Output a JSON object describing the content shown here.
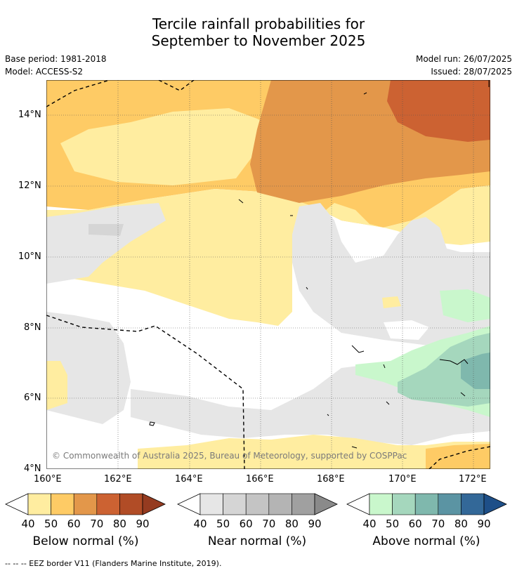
{
  "title_line1": "Tercile rainfall probabilities for",
  "title_line2": "September to November 2025",
  "base_period": "Base period: 1981-2018",
  "model": "Model: ACCESS-S2",
  "model_run": "Model run: 26/07/2025",
  "issued": "Issued: 28/07/2025",
  "copyright": "© Commonwealth of Australia 2025, Bureau of Meteorology, supported by COSPPac",
  "lat_labels": [
    "14°N",
    "12°N",
    "10°N",
    "8°N",
    "6°N",
    "4°N"
  ],
  "lon_labels": [
    "160°E",
    "162°E",
    "164°E",
    "166°E",
    "168°E",
    "170°E",
    "172°E"
  ],
  "colorbars": [
    {
      "label": "Below normal (%)",
      "ticks": [
        "40",
        "50",
        "60",
        "70",
        "80",
        "90"
      ],
      "colors": [
        "#ffeda0",
        "#fecb65",
        "#e3974a",
        "#cc6232",
        "#b14c26",
        "#953b20"
      ]
    },
    {
      "label": "Near normal (%)",
      "ticks": [
        "40",
        "50",
        "60",
        "70",
        "80",
        "90"
      ],
      "colors": [
        "#e6e6e6",
        "#d5d5d5",
        "#c4c4c4",
        "#b4b4b4",
        "#a0a0a0",
        "#8a8a8a"
      ]
    },
    {
      "label": "Above normal (%)",
      "ticks": [
        "40",
        "50",
        "60",
        "70",
        "80",
        "90"
      ],
      "colors": [
        "#c9f7cc",
        "#a5d7bd",
        "#7fb8ad",
        "#5b94a3",
        "#336898",
        "#1e4f88"
      ]
    }
  ],
  "footer": "--  --  -- EEZ border V11 (Flanders Marine Institute, 2019)."
}
